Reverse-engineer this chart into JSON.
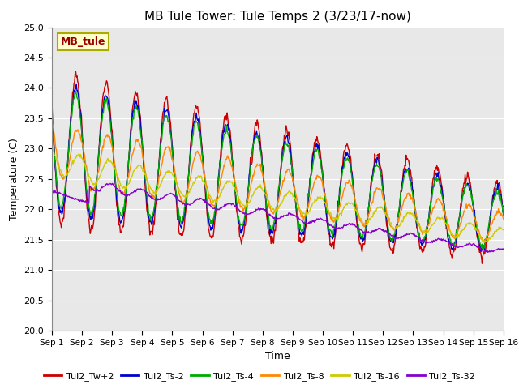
{
  "title": "MB Tule Tower: Tule Temps 2 (3/23/17-now)",
  "xlabel": "Time",
  "ylabel": "Temperature (C)",
  "ylim": [
    20.0,
    25.0
  ],
  "yticks": [
    20.0,
    20.5,
    21.0,
    21.5,
    22.0,
    22.5,
    23.0,
    23.5,
    24.0,
    24.5,
    25.0
  ],
  "bg_color": "#e8e8e8",
  "fig_color": "#ffffff",
  "legend_label": "MB_tule",
  "series_colors": {
    "Tul2_Tw+2": "#cc0000",
    "Tul2_Ts-2": "#0000cc",
    "Tul2_Ts-4": "#00aa00",
    "Tul2_Ts-8": "#ff8800",
    "Tul2_Ts-16": "#cccc00",
    "Tul2_Ts-32": "#8800cc"
  },
  "n_points": 720,
  "x_start": 0,
  "x_end": 15,
  "xtick_positions": [
    0,
    1,
    2,
    3,
    4,
    5,
    6,
    7,
    8,
    9,
    10,
    11,
    12,
    13,
    14,
    15
  ],
  "xtick_labels": [
    "Sep 1",
    "Sep 2",
    "Sep 3",
    "Sep 4",
    "Sep 5",
    "Sep 6",
    "Sep 7",
    "Sep 8",
    "Sep 9",
    "Sep 10",
    "Sep 11",
    "Sep 12",
    "Sep 13",
    "Sep 14",
    "Sep 15",
    "Sep 16"
  ],
  "grid_color": "#ffffff",
  "linewidth": 1.0
}
